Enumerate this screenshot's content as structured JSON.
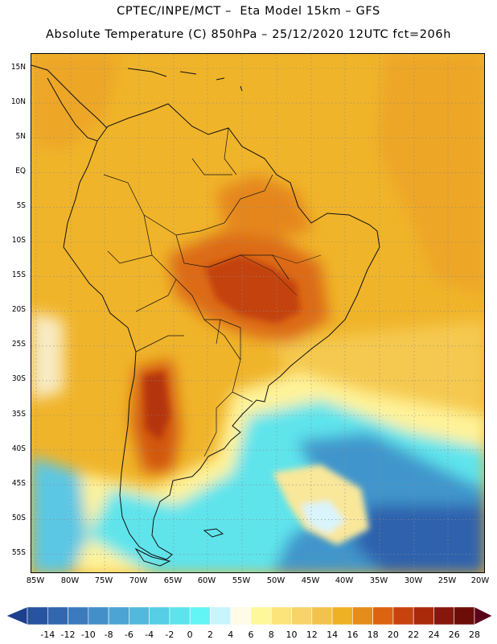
{
  "header": {
    "line1": "CPTEC/INPE/MCT –  Eta Model 15km – GFS",
    "line2": "Absolute Temperature (C) 850hPa – 25/12/2020 12UTC fct=206h"
  },
  "map": {
    "lat_labels": [
      "15N",
      "10N",
      "5N",
      "EQ",
      "5S",
      "10S",
      "15S",
      "20S",
      "25S",
      "30S",
      "35S",
      "40S",
      "45S",
      "50S",
      "55S"
    ],
    "lon_labels": [
      "85W",
      "80W",
      "75W",
      "70W",
      "65W",
      "60W",
      "55W",
      "50W",
      "45W",
      "40W",
      "35W",
      "30W",
      "25W",
      "20W"
    ]
  },
  "colorbar": {
    "labels": [
      "-14",
      "-12",
      "-10",
      "-8",
      "-6",
      "-4",
      "-2",
      "0",
      "2",
      "4",
      "6",
      "8",
      "10",
      "12",
      "14",
      "16",
      "18",
      "20",
      "22",
      "24",
      "26",
      "28"
    ],
    "colors": [
      "#1c3f8f",
      "#27539f",
      "#3266ae",
      "#3b7bbd",
      "#438fc9",
      "#4ba4d4",
      "#52b9dc",
      "#57cde6",
      "#5ce3ec",
      "#62f5f5",
      "#c8f4fb",
      "#fffbe6",
      "#fff89a",
      "#fde47a",
      "#f8d36a",
      "#f2c24d",
      "#eeb124",
      "#e58c1a",
      "#db6410",
      "#c8420d",
      "#a82a0b",
      "#86170c",
      "#6d0d0a",
      "#5a0018"
    ]
  }
}
